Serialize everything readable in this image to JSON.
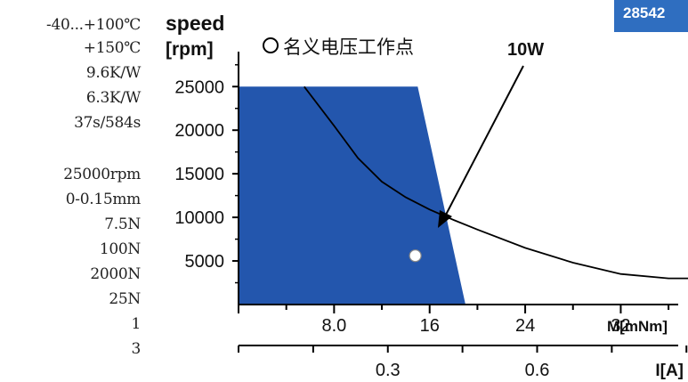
{
  "badge": "28542",
  "specs": [
    "-40...+100℃",
    "+150℃",
    "9.6K/W",
    "6.3K/W",
    "37s/584s",
    "25000rpm",
    "0-0.15mm",
    "7.5N",
    "100N",
    "2000N",
    "25N",
    "1",
    "3"
  ],
  "chart_data": {
    "type": "area",
    "ylabel_line1": "speed",
    "ylabel_line2": "[rpm]",
    "xlabel": "M[mNm]",
    "x2label": "I[A]",
    "legend_text": "名义电压工作点",
    "curve_label": "10W",
    "y_ticks": [
      "5000",
      "10000",
      "15000",
      "20000",
      "25000"
    ],
    "x_ticks": [
      "8.0",
      "16",
      "24",
      "32"
    ],
    "x2_ticks": [
      "0.3",
      "0.6"
    ],
    "xlim": [
      0,
      40
    ],
    "ylim": [
      0,
      30000
    ],
    "x2lim": [
      0,
      0.96
    ],
    "operating_region": [
      [
        0,
        25000
      ],
      [
        15,
        25000
      ],
      [
        19,
        0
      ],
      [
        0,
        0
      ]
    ],
    "power_curve_10W": [
      [
        5.5,
        25000
      ],
      [
        8,
        20500
      ],
      [
        10,
        16800
      ],
      [
        12,
        14100
      ],
      [
        14,
        12300
      ],
      [
        16,
        10900
      ],
      [
        18,
        9700
      ],
      [
        20,
        8600
      ],
      [
        24,
        6500
      ],
      [
        28,
        4800
      ],
      [
        32,
        3500
      ],
      [
        36,
        3000
      ],
      [
        40,
        3000
      ]
    ],
    "operating_point": [
      14.8,
      5600
    ],
    "colors": {
      "region": "#2356ad",
      "curve": "#000000",
      "badge": "#2f6ec0"
    }
  }
}
